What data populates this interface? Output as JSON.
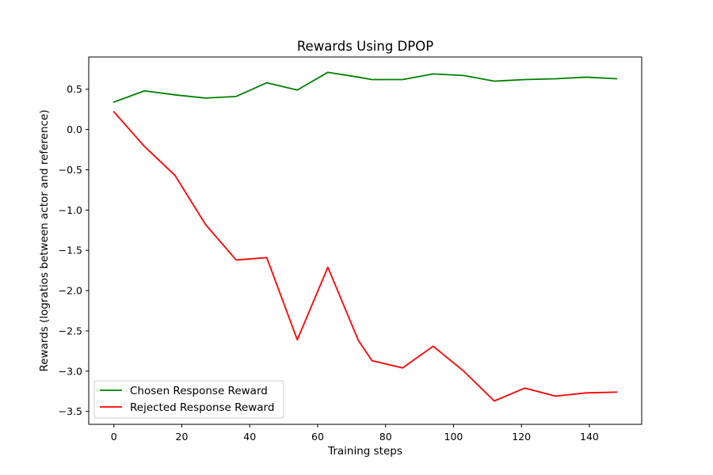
{
  "chart_data": {
    "type": "line",
    "title": "Rewards Using DPOP",
    "xlabel": "Training steps",
    "ylabel": "Rewards (logratios between actor and reference)",
    "xlim": [
      -7.4,
      155.4
    ],
    "ylim": [
      -3.66,
      0.9
    ],
    "xticks": [
      0,
      20,
      40,
      60,
      80,
      100,
      120,
      140
    ],
    "yticks": [
      -3.5,
      -3.0,
      -2.5,
      -2.0,
      -1.5,
      -1.0,
      -0.5,
      0.0,
      0.5
    ],
    "x": [
      0,
      9,
      18,
      27,
      36,
      45,
      54,
      63,
      72,
      76,
      85,
      94,
      103,
      112,
      121,
      130,
      139,
      148
    ],
    "series": [
      {
        "name": "Chosen Response Reward",
        "color": "#008000",
        "values": [
          0.34,
          0.48,
          0.43,
          0.39,
          0.41,
          0.58,
          0.49,
          0.71,
          0.65,
          0.62,
          0.62,
          0.69,
          0.67,
          0.6,
          0.62,
          0.63,
          0.65,
          0.63
        ]
      },
      {
        "name": "Rejected Response Reward",
        "color": "#ff0000",
        "values": [
          0.22,
          -0.21,
          -0.57,
          -1.18,
          -1.62,
          -1.59,
          -2.61,
          -1.71,
          -2.62,
          -2.87,
          -2.96,
          -2.69,
          -3.0,
          -3.37,
          -3.21,
          -3.31,
          -3.27,
          -3.26
        ]
      }
    ],
    "legend": "lower-left",
    "grid": false
  }
}
